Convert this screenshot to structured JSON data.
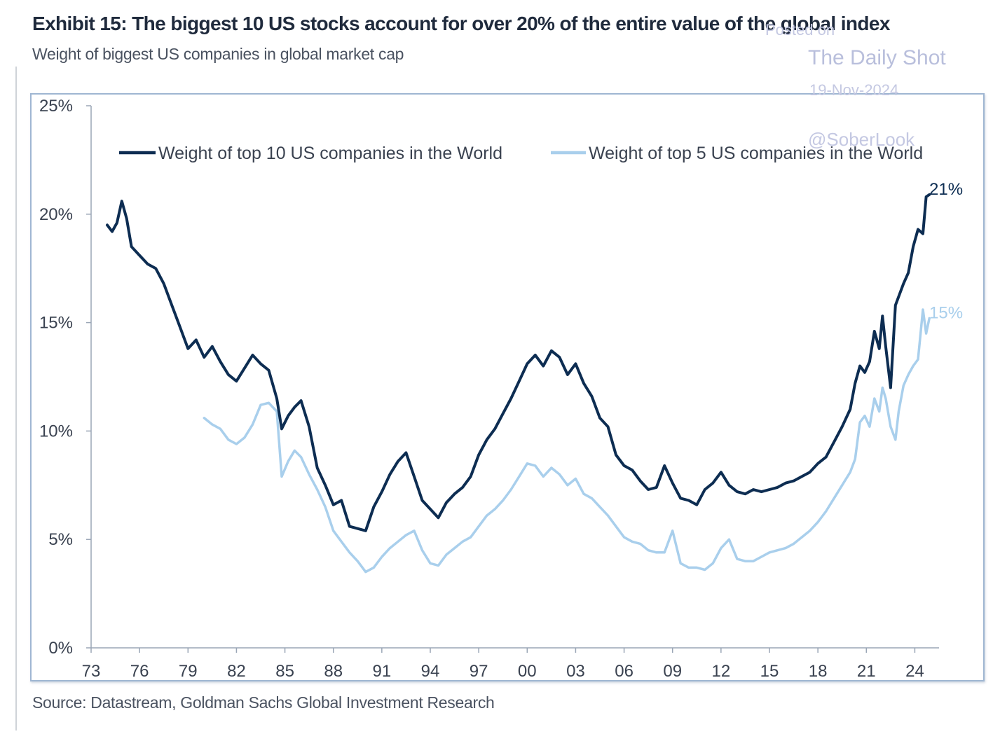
{
  "header": {
    "title": "Exhibit 15: The biggest 10 US stocks account for over 20% of the entire value of the global index",
    "subtitle": "Weight of biggest US companies in global market cap"
  },
  "footer": {
    "source": "Source: Datastream, Goldman Sachs Global Investment Research"
  },
  "watermark": {
    "top_text": "Posted on",
    "name": "The Daily Shot",
    "date": "19-Nov-2024",
    "handle": "@SoberLook"
  },
  "colors": {
    "top10": "#0d2d52",
    "top5": "#a9cfec",
    "axis": "#9aa6b6",
    "text": "#3a4250",
    "frame": "#9fb6d2"
  },
  "chart_data": {
    "type": "line",
    "title": "Weight of biggest US companies in global market cap",
    "xlabel": "",
    "ylabel": "",
    "xlim": [
      1973,
      2025.5
    ],
    "ylim": [
      0,
      25
    ],
    "x_ticks": [
      1973,
      1976,
      1979,
      1982,
      1985,
      1988,
      1991,
      1994,
      1997,
      2000,
      2003,
      2006,
      2009,
      2012,
      2015,
      2018,
      2021,
      2024
    ],
    "x_tick_labels": [
      "73",
      "76",
      "79",
      "82",
      "85",
      "88",
      "91",
      "94",
      "97",
      "00",
      "03",
      "06",
      "09",
      "12",
      "15",
      "18",
      "21",
      "24"
    ],
    "y_ticks": [
      0,
      5,
      10,
      15,
      20,
      25
    ],
    "y_tick_labels": [
      "0%",
      "5%",
      "10%",
      "15%",
      "20%",
      "25%"
    ],
    "grid": false,
    "legend_position": "top",
    "series": [
      {
        "name": "Weight of top 10 US companies in the World",
        "end_label": "21%",
        "x": [
          1974.0,
          1974.3,
          1974.6,
          1974.9,
          1975.2,
          1975.5,
          1976.0,
          1976.5,
          1977.0,
          1977.5,
          1978.0,
          1978.5,
          1979.0,
          1979.5,
          1980.0,
          1980.5,
          1981.0,
          1981.5,
          1982.0,
          1982.5,
          1983.0,
          1983.5,
          1984.0,
          1984.5,
          1984.8,
          1985.2,
          1985.6,
          1986.0,
          1986.5,
          1987.0,
          1987.5,
          1988.0,
          1988.5,
          1989.0,
          1989.5,
          1990.0,
          1990.5,
          1991.0,
          1991.5,
          1992.0,
          1992.5,
          1993.0,
          1993.5,
          1994.0,
          1994.5,
          1995.0,
          1995.5,
          1996.0,
          1996.5,
          1997.0,
          1997.5,
          1998.0,
          1998.5,
          1999.0,
          1999.5,
          2000.0,
          2000.5,
          2001.0,
          2001.5,
          2002.0,
          2002.5,
          2003.0,
          2003.5,
          2004.0,
          2004.5,
          2005.0,
          2005.5,
          2006.0,
          2006.5,
          2007.0,
          2007.5,
          2008.0,
          2008.5,
          2009.0,
          2009.5,
          2010.0,
          2010.5,
          2011.0,
          2011.5,
          2012.0,
          2012.5,
          2013.0,
          2013.5,
          2014.0,
          2014.5,
          2015.0,
          2015.5,
          2016.0,
          2016.5,
          2017.0,
          2017.5,
          2018.0,
          2018.5,
          2019.0,
          2019.5,
          2020.0,
          2020.3,
          2020.6,
          2020.9,
          2021.2,
          2021.5,
          2021.8,
          2022.0,
          2022.2,
          2022.5,
          2022.8,
          2023.0,
          2023.3,
          2023.6,
          2023.9,
          2024.2,
          2024.5,
          2024.7,
          2024.9
        ],
        "y": [
          19.5,
          19.2,
          19.6,
          20.6,
          19.8,
          18.5,
          18.1,
          17.7,
          17.5,
          16.8,
          15.8,
          14.8,
          13.8,
          14.2,
          13.4,
          13.9,
          13.2,
          12.6,
          12.3,
          12.9,
          13.5,
          13.1,
          12.8,
          11.5,
          10.1,
          10.7,
          11.1,
          11.4,
          10.2,
          8.3,
          7.5,
          6.6,
          6.8,
          5.6,
          5.5,
          5.4,
          6.5,
          7.2,
          8.0,
          8.6,
          9.0,
          7.9,
          6.8,
          6.4,
          6.0,
          6.7,
          7.1,
          7.4,
          7.9,
          8.9,
          9.6,
          10.1,
          10.8,
          11.5,
          12.3,
          13.1,
          13.5,
          13.0,
          13.7,
          13.4,
          12.6,
          13.1,
          12.2,
          11.6,
          10.6,
          10.2,
          8.9,
          8.4,
          8.2,
          7.7,
          7.3,
          7.4,
          8.4,
          7.6,
          6.9,
          6.8,
          6.6,
          7.3,
          7.6,
          8.1,
          7.5,
          7.2,
          7.1,
          7.3,
          7.2,
          7.3,
          7.4,
          7.6,
          7.7,
          7.9,
          8.1,
          8.5,
          8.8,
          9.5,
          10.2,
          11.0,
          12.2,
          13.0,
          12.7,
          13.2,
          14.6,
          13.8,
          15.3,
          13.9,
          12.0,
          15.8,
          16.2,
          16.8,
          17.3,
          18.5,
          19.3,
          19.1,
          20.8,
          20.9
        ]
      },
      {
        "name": "Weight of top 5 US companies in the World",
        "end_label": "15%",
        "x": [
          1980.0,
          1980.5,
          1981.0,
          1981.5,
          1982.0,
          1982.5,
          1983.0,
          1983.5,
          1984.0,
          1984.5,
          1984.8,
          1985.2,
          1985.6,
          1986.0,
          1986.5,
          1987.0,
          1987.5,
          1988.0,
          1988.5,
          1989.0,
          1989.5,
          1990.0,
          1990.5,
          1991.0,
          1991.5,
          1992.0,
          1992.5,
          1993.0,
          1993.5,
          1994.0,
          1994.5,
          1995.0,
          1995.5,
          1996.0,
          1996.5,
          1997.0,
          1997.5,
          1998.0,
          1998.5,
          1999.0,
          1999.5,
          2000.0,
          2000.5,
          2001.0,
          2001.5,
          2002.0,
          2002.5,
          2003.0,
          2003.5,
          2004.0,
          2004.5,
          2005.0,
          2005.5,
          2006.0,
          2006.5,
          2007.0,
          2007.5,
          2008.0,
          2008.5,
          2009.0,
          2009.5,
          2010.0,
          2010.5,
          2011.0,
          2011.5,
          2012.0,
          2012.5,
          2013.0,
          2013.5,
          2014.0,
          2014.5,
          2015.0,
          2015.5,
          2016.0,
          2016.5,
          2017.0,
          2017.5,
          2018.0,
          2018.5,
          2019.0,
          2019.5,
          2020.0,
          2020.3,
          2020.6,
          2020.9,
          2021.2,
          2021.5,
          2021.8,
          2022.0,
          2022.2,
          2022.5,
          2022.8,
          2023.0,
          2023.3,
          2023.6,
          2023.9,
          2024.2,
          2024.5,
          2024.7,
          2024.9
        ],
        "y": [
          10.6,
          10.3,
          10.1,
          9.6,
          9.4,
          9.7,
          10.3,
          11.2,
          11.3,
          10.9,
          7.9,
          8.6,
          9.1,
          8.8,
          8.0,
          7.3,
          6.5,
          5.4,
          4.9,
          4.4,
          4.0,
          3.5,
          3.7,
          4.2,
          4.6,
          4.9,
          5.2,
          5.4,
          4.5,
          3.9,
          3.8,
          4.3,
          4.6,
          4.9,
          5.1,
          5.6,
          6.1,
          6.4,
          6.8,
          7.3,
          7.9,
          8.5,
          8.4,
          7.9,
          8.3,
          8.0,
          7.5,
          7.8,
          7.1,
          6.9,
          6.5,
          6.1,
          5.6,
          5.1,
          4.9,
          4.8,
          4.5,
          4.4,
          4.4,
          5.4,
          3.9,
          3.7,
          3.7,
          3.6,
          3.9,
          4.6,
          5.0,
          4.1,
          4.0,
          4.0,
          4.2,
          4.4,
          4.5,
          4.6,
          4.8,
          5.1,
          5.4,
          5.8,
          6.3,
          6.9,
          7.5,
          8.1,
          8.7,
          10.4,
          10.7,
          10.2,
          11.5,
          10.9,
          12.0,
          11.5,
          10.2,
          9.6,
          10.9,
          12.1,
          12.6,
          13.0,
          13.3,
          15.6,
          14.5,
          15.2
        ]
      }
    ]
  }
}
